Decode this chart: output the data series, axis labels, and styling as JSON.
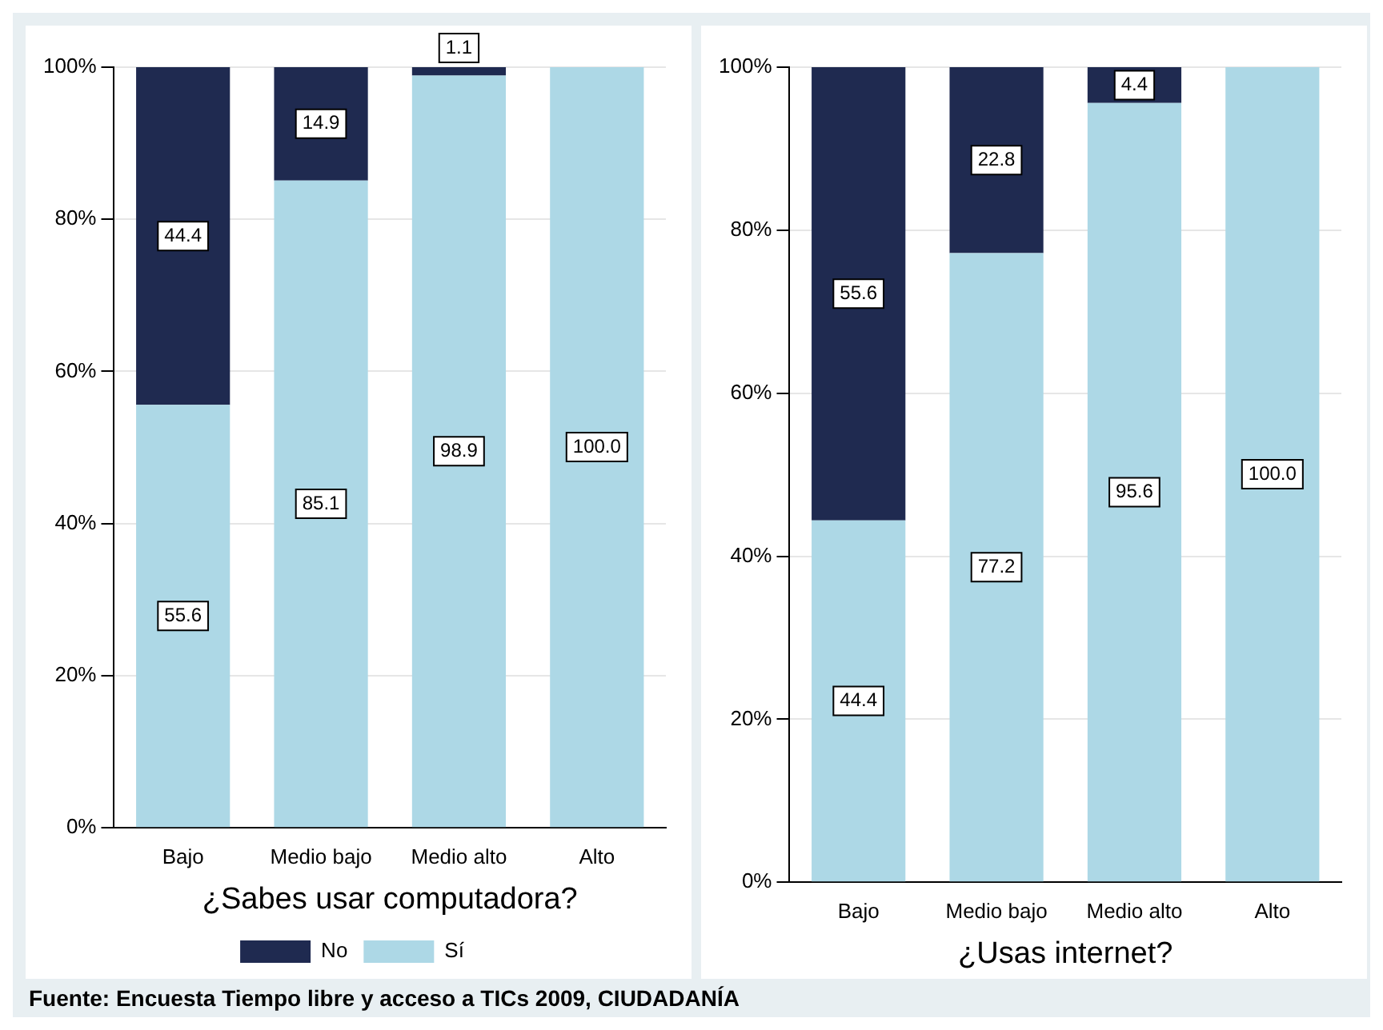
{
  "chart_data": [
    {
      "type": "bar",
      "stacked": true,
      "xlabel": "¿Sabes usar computadora?",
      "categories": [
        "Bajo",
        "Medio bajo",
        "Medio alto",
        "Alto"
      ],
      "series": [
        {
          "name": "Sí",
          "color": "#add8e6",
          "values": [
            55.6,
            85.1,
            98.9,
            100.0
          ],
          "value_labels": [
            "55.6",
            "85.1",
            "98.9",
            "100.0"
          ]
        },
        {
          "name": "No",
          "color": "#1f2a50",
          "values": [
            44.4,
            14.9,
            1.1,
            0
          ],
          "value_labels": [
            "44.4",
            "14.9",
            "1.1",
            null
          ]
        }
      ],
      "ylim": [
        0,
        100
      ],
      "yticks": [
        {
          "value": 0,
          "label": "0%"
        },
        {
          "value": 20,
          "label": "20%"
        },
        {
          "value": 40,
          "label": "40%"
        },
        {
          "value": 60,
          "label": "60%"
        },
        {
          "value": 80,
          "label": "80%"
        },
        {
          "value": 100,
          "label": "100%"
        }
      ],
      "grid": "y",
      "legend": "bottom",
      "annotations": [
        "Fuente: Encuesta Tiempo libre y acceso a TICs 2009, CIUDADANÍA"
      ]
    },
    {
      "type": "bar",
      "stacked": true,
      "xlabel": "¿Usas internet?",
      "categories": [
        "Bajo",
        "Medio bajo",
        "Medio alto",
        "Alto"
      ],
      "series": [
        {
          "color": "#add8e6",
          "values": [
            44.4,
            77.2,
            95.6,
            100.0
          ],
          "value_labels": [
            "44.4",
            "77.2",
            "95.6",
            "100.0"
          ]
        },
        {
          "color": "#1f2a50",
          "values": [
            55.6,
            22.8,
            4.4,
            0
          ],
          "value_labels": [
            "55.6",
            "22.8",
            "4.4",
            null
          ]
        }
      ],
      "ylim": [
        0,
        100
      ],
      "yticks": [
        {
          "value": 0,
          "label": "0%"
        },
        {
          "value": 20,
          "label": "20%"
        },
        {
          "value": 40,
          "label": "40%"
        },
        {
          "value": 60,
          "label": "60%"
        },
        {
          "value": 80,
          "label": "80%"
        },
        {
          "value": 100,
          "label": "100%"
        }
      ],
      "grid": "y"
    }
  ]
}
